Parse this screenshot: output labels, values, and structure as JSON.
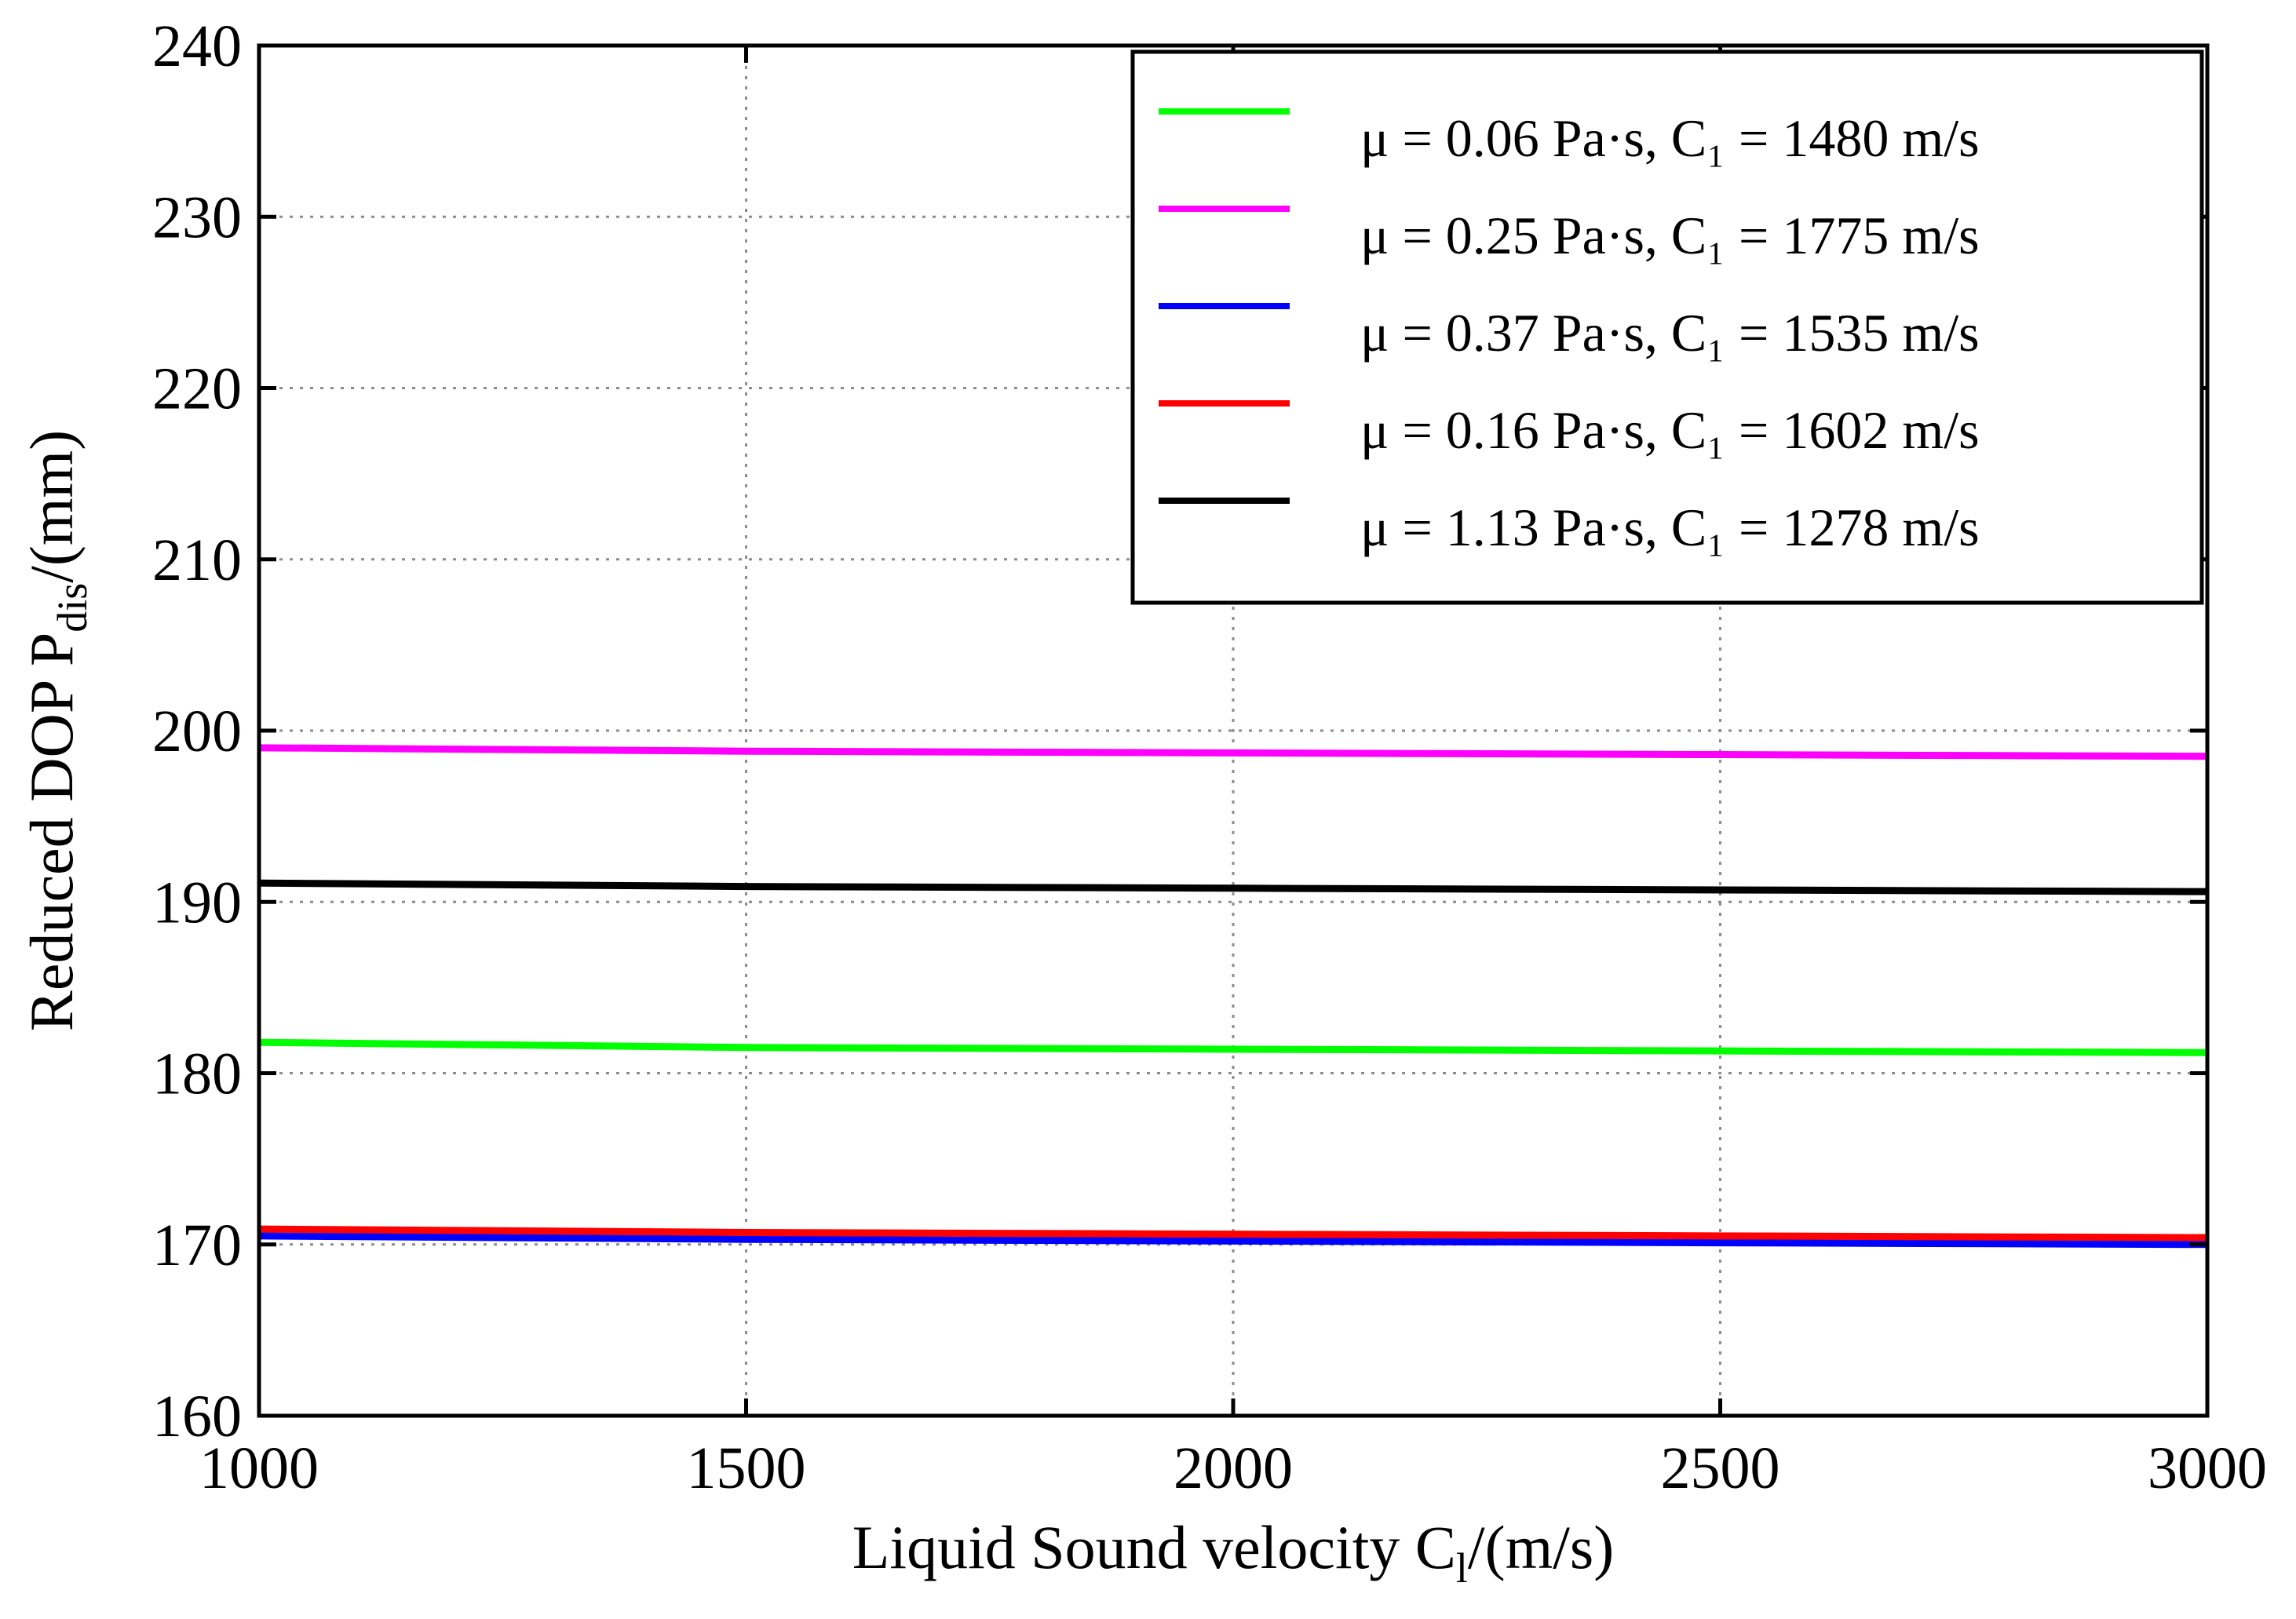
{
  "chart_data": {
    "type": "line",
    "title": "",
    "xlabel": "Liquid Sound velocity  C",
    "xlabel_subscript": "l",
    "xlabel_suffix": "/(m/s)",
    "ylabel": "Reduced DOP  P",
    "ylabel_subscript": "dis",
    "ylabel_suffix": "/(mm)",
    "xlim": [
      1000,
      3000
    ],
    "ylim": [
      160,
      240
    ],
    "xticks": [
      1000,
      1500,
      2000,
      2500,
      3000
    ],
    "yticks": [
      160,
      170,
      180,
      190,
      200,
      210,
      220,
      230,
      240
    ],
    "xtick_labels": [
      "1000",
      "1500",
      "2000",
      "2500",
      "3000"
    ],
    "ytick_labels": [
      "160",
      "170",
      "180",
      "190",
      "200",
      "210",
      "220",
      "230",
      "240"
    ],
    "grid": true,
    "legend_position": "top-right",
    "series": [
      {
        "name": "μ = 0.06 Pa·s, C₁ = 1480 m/s",
        "color": "#00ff00",
        "x": [
          1000,
          1500,
          2000,
          2500,
          3000
        ],
        "values": [
          181.8,
          181.5,
          181.4,
          181.3,
          181.2
        ]
      },
      {
        "name": "μ = 0.25 Pa·s, C₁ = 1775 m/s",
        "color": "#ff00ff",
        "x": [
          1000,
          1500,
          2000,
          2500,
          3000
        ],
        "values": [
          199.0,
          198.8,
          198.7,
          198.6,
          198.5
        ]
      },
      {
        "name": "μ = 0.37 Pa·s, C₁ = 1535 m/s",
        "color": "#0000ff",
        "x": [
          1000,
          1500,
          2000,
          2500,
          3000
        ],
        "values": [
          170.5,
          170.3,
          170.2,
          170.1,
          170.0
        ]
      },
      {
        "name": "μ = 0.16 Pa·s, C₁ = 1602 m/s",
        "color": "#ff0000",
        "x": [
          1000,
          1500,
          2000,
          2500,
          3000
        ],
        "values": [
          170.9,
          170.7,
          170.6,
          170.5,
          170.4
        ]
      },
      {
        "name": "μ = 1.13 Pa·s, C₁ = 1278 m/s",
        "color": "#000000",
        "x": [
          1000,
          1500,
          2000,
          2500,
          3000
        ],
        "values": [
          191.1,
          190.9,
          190.8,
          190.7,
          190.6
        ]
      }
    ]
  }
}
